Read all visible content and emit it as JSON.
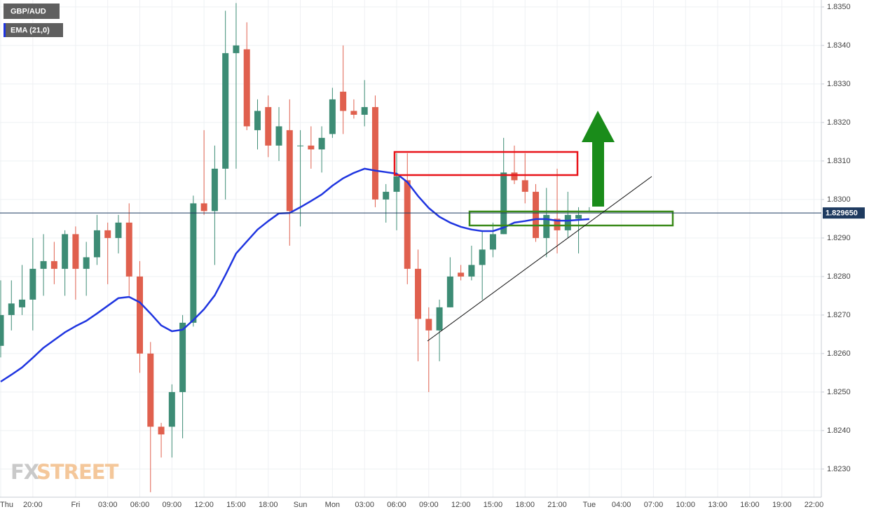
{
  "chart_data": {
    "type": "candlestick",
    "symbol": "GBP/AUD",
    "categories": [
      "Thu",
      null,
      null,
      "20:00",
      null,
      null,
      null,
      "Fri",
      null,
      null,
      "03:00",
      null,
      null,
      "06:00",
      null,
      null,
      "09:00",
      null,
      null,
      "12:00",
      null,
      null,
      "15:00",
      null,
      null,
      "18:00",
      null,
      null,
      "Sun",
      null,
      null,
      "Mon",
      null,
      null,
      "03:00",
      null,
      null,
      "06:00",
      null,
      null,
      "09:00",
      null,
      null,
      "12:00",
      null,
      null,
      "15:00",
      null,
      null,
      "18:00",
      null,
      null,
      "21:00",
      null,
      null,
      "Tue",
      null,
      null,
      "04:00",
      null,
      null,
      "07:00",
      null,
      null,
      "10:00",
      null,
      null,
      "13:00",
      null,
      null,
      "16:00",
      null,
      null,
      "19:00",
      null,
      null,
      "22:00"
    ],
    "open": [
      1.8262,
      1.827,
      1.8272,
      1.8274,
      1.8282,
      1.8284,
      1.8282,
      1.8291,
      1.8282,
      1.8285,
      1.8292,
      1.829,
      1.8294,
      1.828,
      1.826,
      1.8241,
      1.8241,
      1.825,
      1.8268,
      1.8299,
      1.8297,
      1.8308,
      1.8338,
      1.8339,
      1.8318,
      1.8324,
      1.8314,
      1.8318,
      1.8314,
      1.8314,
      1.8313,
      1.8317,
      1.8328,
      1.8323,
      1.8322,
      1.8324,
      1.83,
      1.8302,
      1.8305,
      1.8282,
      1.8269,
      1.8266,
      1.8272,
      1.8281,
      1.828,
      1.8283,
      1.8287,
      1.8291,
      1.8307,
      1.8305,
      1.8302,
      1.829,
      1.8295,
      1.8292,
      1.8295,
      1.8297,
      null,
      null,
      null,
      null,
      null,
      null,
      null,
      null,
      null,
      null,
      null,
      null,
      null,
      null,
      null,
      null,
      null,
      null,
      null,
      null,
      null
    ],
    "high": [
      1.8279,
      1.8279,
      1.8283,
      1.829,
      1.8291,
      1.8289,
      1.8292,
      1.8293,
      1.8289,
      1.8296,
      1.8294,
      1.8296,
      1.8299,
      1.8284,
      1.8263,
      1.8242,
      1.8252,
      1.827,
      1.8301,
      1.8318,
      1.8314,
      1.8349,
      1.8351,
      1.8346,
      1.8326,
      1.8327,
      1.8324,
      1.8326,
      1.8318,
      1.8319,
      1.8319,
      1.8329,
      1.834,
      1.8326,
      1.8331,
      1.8327,
      1.8304,
      1.8312,
      1.8312,
      1.8287,
      1.8272,
      1.8274,
      1.8285,
      1.8283,
      1.8288,
      1.8292,
      1.8294,
      1.8316,
      1.8314,
      1.8312,
      1.8304,
      1.8303,
      1.8308,
      1.8302,
      1.8298,
      1.8298,
      null,
      null,
      null,
      null,
      null,
      null,
      null,
      null,
      null,
      null,
      null,
      null,
      null,
      null,
      null,
      null,
      null,
      null,
      null,
      null,
      null
    ],
    "low": [
      1.8259,
      1.8266,
      1.827,
      1.8266,
      1.8275,
      1.8278,
      1.8275,
      1.8274,
      1.8275,
      1.8283,
      1.8278,
      1.8286,
      1.8275,
      1.8255,
      1.8224,
      1.8233,
      1.8233,
      1.8238,
      1.8267,
      1.8296,
      1.8283,
      1.83,
      1.8308,
      1.8318,
      1.8313,
      1.8311,
      1.831,
      1.8288,
      1.8293,
      1.8308,
      1.8307,
      1.8316,
      1.8317,
      1.8321,
      1.8319,
      1.8298,
      1.8294,
      1.8292,
      1.8278,
      1.8258,
      1.825,
      1.8258,
      1.8272,
      1.8279,
      1.8279,
      1.8274,
      1.8285,
      1.8291,
      1.8304,
      1.8299,
      1.8289,
      1.8285,
      1.8286,
      1.829,
      1.8286,
      1.8297,
      null,
      null,
      null,
      null,
      null,
      null,
      null,
      null,
      null,
      null,
      null,
      null,
      null,
      null,
      null,
      null,
      null,
      null,
      null,
      null,
      null
    ],
    "close": [
      1.827,
      1.8273,
      1.8274,
      1.8282,
      1.8284,
      1.8282,
      1.8291,
      1.8282,
      1.8285,
      1.8292,
      1.829,
      1.8294,
      1.828,
      1.826,
      1.8241,
      1.8239,
      1.825,
      1.8268,
      1.8299,
      1.8297,
      1.8308,
      1.8338,
      1.834,
      1.8319,
      1.8323,
      1.8314,
      1.8319,
      1.8297,
      1.8314,
      1.8313,
      1.8316,
      1.8326,
      1.8323,
      1.8322,
      1.8324,
      1.83,
      1.8302,
      1.8306,
      1.8282,
      1.8269,
      1.8266,
      1.8272,
      1.828,
      1.828,
      1.8283,
      1.8287,
      1.8291,
      1.8307,
      1.8305,
      1.8302,
      1.829,
      1.8296,
      1.8292,
      1.8296,
      1.8296,
      1.8297,
      null,
      null,
      null,
      null,
      null,
      null,
      null,
      null,
      null,
      null,
      null,
      null,
      null,
      null,
      null,
      null,
      null,
      null,
      null,
      null,
      null
    ],
    "up_color": "#3d8c75",
    "down_color": "#e0604e",
    "series": [
      {
        "name": "EMA (21,0)",
        "color": "#1f35e0",
        "values": [
          1.82527,
          1.82545,
          1.82564,
          1.82589,
          1.82615,
          1.82635,
          1.82655,
          1.82671,
          1.82685,
          1.82704,
          1.82724,
          1.82744,
          1.82747,
          1.82733,
          1.82704,
          1.82673,
          1.82658,
          1.82662,
          1.82687,
          1.82715,
          1.82751,
          1.82804,
          1.8286,
          1.82891,
          1.82922,
          1.82944,
          1.82964,
          1.82965,
          1.8298,
          1.82996,
          1.83013,
          1.83036,
          1.83055,
          1.83069,
          1.8308,
          1.83075,
          1.83071,
          1.83067,
          1.83045,
          1.83009,
          1.82978,
          1.82955,
          1.8294,
          1.82929,
          1.82922,
          1.82918,
          1.82918,
          1.82927,
          1.8294,
          1.82944,
          1.82949,
          1.82949,
          1.82945,
          1.82945,
          1.82947,
          1.82949,
          null,
          null,
          null,
          null,
          null,
          null,
          null,
          null,
          null,
          null,
          null,
          null,
          null,
          null,
          null,
          null,
          null,
          null,
          null,
          null,
          null
        ]
      }
    ],
    "last_price": {
      "value": 1.82965,
      "label": "1.829650"
    },
    "ylim": [
      1.82227,
      1.83518
    ],
    "yticks": [
      {
        "value": 1.823,
        "label": "1.8230"
      },
      {
        "value": 1.824,
        "label": "1.8240"
      },
      {
        "value": 1.825,
        "label": "1.8250"
      },
      {
        "value": 1.826,
        "label": "1.8260"
      },
      {
        "value": 1.827,
        "label": "1.8270"
      },
      {
        "value": 1.828,
        "label": "1.8280"
      },
      {
        "value": 1.829,
        "label": "1.8290"
      },
      {
        "value": 1.83,
        "label": "1.8300"
      },
      {
        "value": 1.831,
        "label": "1.8310"
      },
      {
        "value": 1.832,
        "label": "1.8320"
      },
      {
        "value": 1.833,
        "label": "1.8330"
      },
      {
        "value": 1.834,
        "label": "1.8340"
      },
      {
        "value": 1.835,
        "label": "1.8350"
      }
    ],
    "grid": true,
    "watermark": {
      "fx": "FX",
      "street": "STREET"
    }
  }
}
